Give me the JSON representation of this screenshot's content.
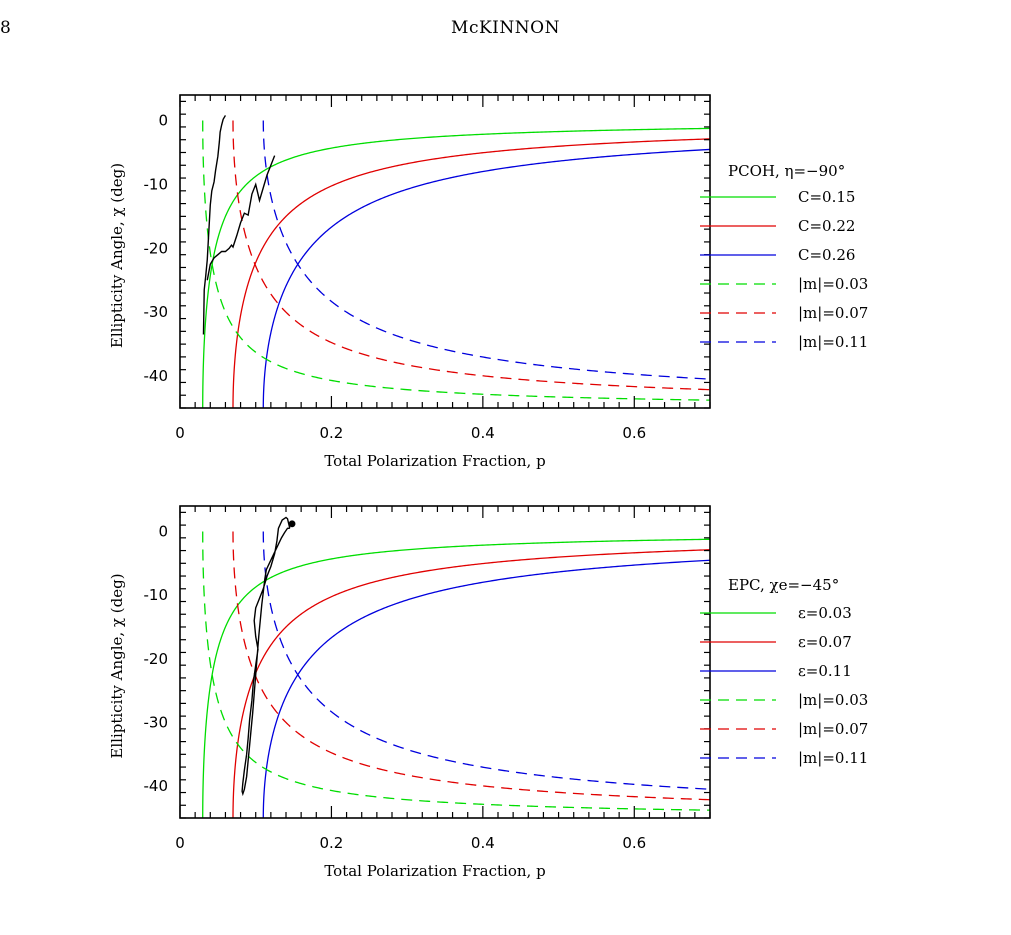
{
  "page": {
    "number": "8",
    "running_head": "McKINNON",
    "caption_fragment": ""
  },
  "colors": {
    "green": "#00dd00",
    "red": "#e00000",
    "blue": "#0000dd",
    "black": "#000000"
  },
  "chart_data": [
    {
      "type": "line",
      "xlabel": "Total Polarization Fraction, p",
      "ylabel": "Ellipticity Angle, χ (deg)",
      "xlim": [
        0,
        0.7
      ],
      "ylim": [
        -45,
        4
      ],
      "xticks": [
        0,
        0.2,
        0.4,
        0.6
      ],
      "xtick_labels": [
        "0",
        "0.2",
        "0.4",
        "0.6"
      ],
      "yticks": [
        0,
        -10,
        -20,
        -30,
        -40
      ],
      "ytick_labels": [
        "0",
        "-10",
        "-20",
        "-30",
        "-40"
      ],
      "legend_title": "PCOH, η=−90°",
      "legend_position": "right",
      "series": [
        {
          "name": "C=0.15",
          "style": "solid",
          "color": "green",
          "kind": "C",
          "param": 0.03,
          "x": [
            0.03,
            0.031,
            0.035,
            0.04,
            0.05,
            0.06,
            0.08,
            0.1,
            0.15,
            0.2,
            0.3,
            0.4,
            0.5,
            0.6,
            0.7
          ],
          "y": [
            -45,
            -33.1,
            -24.7,
            -20.3,
            -15.0,
            -12.1,
            -8.7,
            -6.8,
            -4.5,
            -3.4,
            -2.3,
            -1.7,
            -1.4,
            -1.1,
            -1.0
          ]
        },
        {
          "name": "C=0.22",
          "style": "solid",
          "color": "red",
          "kind": "C",
          "param": 0.07,
          "x": [
            0.07,
            0.071,
            0.075,
            0.08,
            0.09,
            0.1,
            0.12,
            0.15,
            0.2,
            0.3,
            0.4,
            0.5,
            0.6,
            0.7
          ],
          "y": [
            -45,
            -38.0,
            -33.2,
            -30.0,
            -25.5,
            -22.2,
            -17.9,
            -13.8,
            -10.2,
            -6.7,
            -5.0,
            -4.0,
            -3.3,
            -2.9
          ]
        },
        {
          "name": "C=0.26",
          "style": "solid",
          "color": "blue",
          "kind": "C",
          "param": 0.11,
          "x": [
            0.11,
            0.111,
            0.115,
            0.12,
            0.13,
            0.15,
            0.18,
            0.2,
            0.25,
            0.3,
            0.4,
            0.5,
            0.6,
            0.7
          ],
          "y": [
            -45,
            -38.7,
            -36.2,
            -34.1,
            -31.4,
            -27.4,
            -23.2,
            -21.3,
            -17.4,
            -14.8,
            -11.3,
            -9.1,
            -7.6,
            -6.5
          ]
        },
        {
          "name": "|m|=0.03",
          "style": "dashed",
          "color": "green",
          "kind": "m",
          "param": 0.03,
          "x": [
            0.03,
            0.031,
            0.035,
            0.04,
            0.05,
            0.06,
            0.08,
            0.1,
            0.15,
            0.2,
            0.3,
            0.4,
            0.5,
            0.6,
            0.7
          ],
          "y": [
            0,
            -11.9,
            -20.3,
            -24.7,
            -30.0,
            -32.9,
            -36.3,
            -38.2,
            -40.5,
            -41.6,
            -42.7,
            -43.3,
            -43.6,
            -43.9,
            -44.0
          ]
        },
        {
          "name": "|m|=0.07",
          "style": "dashed",
          "color": "red",
          "kind": "m",
          "param": 0.07,
          "x": [
            0.07,
            0.071,
            0.075,
            0.08,
            0.09,
            0.1,
            0.12,
            0.15,
            0.2,
            0.3,
            0.4,
            0.5,
            0.6,
            0.7
          ],
          "y": [
            0,
            -7.0,
            -11.8,
            -15.0,
            -19.5,
            -22.8,
            -27.1,
            -31.2,
            -34.8,
            -38.3,
            -40.0,
            -41.0,
            -41.7,
            -42.1
          ]
        },
        {
          "name": "|m|=0.11",
          "style": "dashed",
          "color": "blue",
          "kind": "m",
          "param": 0.11,
          "x": [
            0.11,
            0.111,
            0.115,
            0.12,
            0.13,
            0.15,
            0.18,
            0.2,
            0.25,
            0.3,
            0.4,
            0.5,
            0.6,
            0.7
          ],
          "y": [
            0,
            -6.3,
            -8.8,
            -10.9,
            -13.6,
            -17.6,
            -21.8,
            -23.7,
            -27.6,
            -30.2,
            -33.7,
            -35.9,
            -37.4,
            -38.5
          ]
        },
        {
          "name": "",
          "style": "solid",
          "color": "black",
          "kind": "data",
          "x": [
            0.031,
            0.032,
            0.034,
            0.036,
            0.038,
            0.04,
            0.042,
            0.045,
            0.047,
            0.05,
            0.052,
            0.053,
            0.055,
            0.057,
            0.06
          ],
          "y": [
            -33.5,
            -26.5,
            -24.3,
            -21.8,
            -17.5,
            -13.2,
            -11.0,
            -9.6,
            -7.8,
            -5.6,
            -3.3,
            -1.8,
            -0.7,
            0.2,
            0.8
          ],
          "x2": [
            0.036,
            0.04,
            0.045,
            0.05,
            0.055,
            0.06,
            0.065,
            0.068,
            0.07,
            0.075,
            0.08,
            0.085,
            0.09,
            0.095,
            0.1,
            0.105,
            0.11,
            0.115,
            0.12,
            0.125
          ],
          "y2": [
            -25.0,
            -22.5,
            -21.5,
            -21.0,
            -20.5,
            -20.5,
            -20.0,
            -19.5,
            -19.8,
            -18.0,
            -16.0,
            -14.5,
            -14.8,
            -11.5,
            -10.0,
            -12.5,
            -10.5,
            -8.5,
            -7.0,
            -5.5
          ]
        }
      ],
      "legend_items": [
        {
          "label": "C=0.15",
          "style": "solid",
          "color": "green"
        },
        {
          "label": "C=0.22",
          "style": "solid",
          "color": "red"
        },
        {
          "label": "C=0.26",
          "style": "solid",
          "color": "blue"
        },
        {
          "label": "|m|=0.03",
          "style": "dashed",
          "color": "green"
        },
        {
          "label": "|m|=0.07",
          "style": "dashed",
          "color": "red"
        },
        {
          "label": "|m|=0.11",
          "style": "dashed",
          "color": "blue"
        }
      ]
    },
    {
      "type": "line",
      "xlabel": "Total Polarization Fraction, p",
      "ylabel": "Ellipticity Angle, χ (deg)",
      "xlim": [
        0,
        0.7
      ],
      "ylim": [
        -45,
        4
      ],
      "xticks": [
        0,
        0.2,
        0.4,
        0.6
      ],
      "xtick_labels": [
        "0",
        "0.2",
        "0.4",
        "0.6"
      ],
      "yticks": [
        0,
        -10,
        -20,
        -30,
        -40
      ],
      "ytick_labels": [
        "0",
        "-10",
        "-20",
        "-30",
        "-40"
      ],
      "legend_title": "EPC, χe=−45°",
      "legend_position": "right",
      "series": [
        {
          "name": "ε=0.03",
          "style": "solid",
          "color": "green",
          "kind": "C",
          "param": 0.03,
          "x": [
            0.03,
            0.031,
            0.035,
            0.04,
            0.05,
            0.06,
            0.08,
            0.1,
            0.15,
            0.2,
            0.3,
            0.4,
            0.5,
            0.6,
            0.7
          ],
          "y": [
            -45,
            -33.1,
            -24.7,
            -20.3,
            -15.0,
            -12.1,
            -8.7,
            -6.8,
            -4.5,
            -3.4,
            -2.3,
            -1.7,
            -1.4,
            -1.1,
            -1.0
          ]
        },
        {
          "name": "ε=0.07",
          "style": "solid",
          "color": "red",
          "kind": "C",
          "param": 0.07,
          "x": [
            0.07,
            0.071,
            0.075,
            0.08,
            0.09,
            0.1,
            0.12,
            0.15,
            0.2,
            0.3,
            0.4,
            0.5,
            0.6,
            0.7
          ],
          "y": [
            -45,
            -38.0,
            -33.2,
            -30.0,
            -25.5,
            -22.2,
            -17.9,
            -13.8,
            -10.2,
            -6.7,
            -5.0,
            -4.0,
            -3.3,
            -2.9
          ]
        },
        {
          "name": "ε=0.11",
          "style": "solid",
          "color": "blue",
          "kind": "C",
          "param": 0.11,
          "x": [
            0.11,
            0.111,
            0.115,
            0.12,
            0.13,
            0.15,
            0.18,
            0.2,
            0.25,
            0.3,
            0.4,
            0.5,
            0.6,
            0.7
          ],
          "y": [
            -45,
            -38.7,
            -36.2,
            -34.1,
            -31.4,
            -27.4,
            -23.2,
            -21.3,
            -17.4,
            -14.8,
            -11.3,
            -9.1,
            -7.6,
            -6.5
          ]
        },
        {
          "name": "|m|=0.03",
          "style": "dashed",
          "color": "green",
          "kind": "m",
          "param": 0.03,
          "x": [
            0.03,
            0.031,
            0.035,
            0.04,
            0.05,
            0.06,
            0.08,
            0.1,
            0.15,
            0.2,
            0.3,
            0.4,
            0.5,
            0.6,
            0.7
          ],
          "y": [
            0,
            -11.9,
            -20.3,
            -24.7,
            -30.0,
            -32.9,
            -36.3,
            -38.2,
            -40.5,
            -41.6,
            -42.7,
            -43.3,
            -43.6,
            -43.9,
            -44.0
          ]
        },
        {
          "name": "|m|=0.07",
          "style": "dashed",
          "color": "red",
          "kind": "m",
          "param": 0.07,
          "x": [
            0.07,
            0.071,
            0.075,
            0.08,
            0.09,
            0.1,
            0.12,
            0.15,
            0.2,
            0.3,
            0.4,
            0.5,
            0.6,
            0.7
          ],
          "y": [
            0,
            -7.0,
            -11.8,
            -15.0,
            -19.5,
            -22.8,
            -27.1,
            -31.2,
            -34.8,
            -38.3,
            -40.0,
            -41.0,
            -41.7,
            -42.1
          ]
        },
        {
          "name": "|m|=0.11",
          "style": "dashed",
          "color": "blue",
          "kind": "m",
          "param": 0.11,
          "x": [
            0.11,
            0.111,
            0.115,
            0.12,
            0.13,
            0.15,
            0.18,
            0.2,
            0.25,
            0.3,
            0.4,
            0.5,
            0.6,
            0.7
          ],
          "y": [
            0,
            -6.3,
            -8.8,
            -10.9,
            -13.6,
            -17.6,
            -21.8,
            -23.7,
            -27.6,
            -30.2,
            -33.7,
            -35.9,
            -37.4,
            -38.5
          ]
        },
        {
          "name": "",
          "style": "solid",
          "color": "black",
          "kind": "loop",
          "x": [
            0.145,
            0.142,
            0.14,
            0.135,
            0.13,
            0.128,
            0.125,
            0.12,
            0.115,
            0.11,
            0.105,
            0.1,
            0.098,
            0.1,
            0.103,
            0.1,
            0.097,
            0.095,
            0.092,
            0.09,
            0.088,
            0.085,
            0.083,
            0.082,
            0.083,
            0.085,
            0.088,
            0.09,
            0.092,
            0.094,
            0.096,
            0.098,
            0.1,
            0.102,
            0.104,
            0.106,
            0.108,
            0.11,
            0.112,
            0.114,
            0.118,
            0.122,
            0.126,
            0.13,
            0.134,
            0.138,
            0.142,
            0.145
          ],
          "y": [
            0.5,
            2.0,
            2.2,
            1.8,
            0.5,
            -1.5,
            -3.5,
            -5.5,
            -7.0,
            -9.0,
            -10.5,
            -12.0,
            -14.0,
            -16.5,
            -18.5,
            -21.0,
            -23.5,
            -26.5,
            -29.5,
            -32.5,
            -35.0,
            -37.5,
            -39.5,
            -40.8,
            -41.2,
            -40.5,
            -38.5,
            -36.0,
            -33.5,
            -31.0,
            -28.5,
            -25.5,
            -22.5,
            -19.5,
            -16.5,
            -14.0,
            -11.5,
            -9.5,
            -7.5,
            -6.0,
            -5.0,
            -4.0,
            -3.0,
            -2.0,
            -1.0,
            -0.2,
            0.5,
            0.5
          ],
          "marker": {
            "x": 0.148,
            "y": 1.2
          }
        }
      ],
      "legend_items": [
        {
          "label": "ε=0.03",
          "style": "solid",
          "color": "green"
        },
        {
          "label": "ε=0.07",
          "style": "solid",
          "color": "red"
        },
        {
          "label": "ε=0.11",
          "style": "solid",
          "color": "blue"
        },
        {
          "label": "|m|=0.03",
          "style": "dashed",
          "color": "green"
        },
        {
          "label": "|m|=0.07",
          "style": "dashed",
          "color": "red"
        },
        {
          "label": "|m|=0.11",
          "style": "dashed",
          "color": "blue"
        }
      ]
    }
  ]
}
